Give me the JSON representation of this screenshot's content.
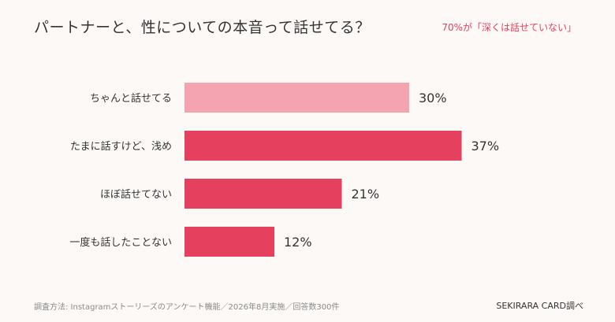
{
  "header": {
    "title": "パートナーと、性についての本音って話せてる？",
    "callout": "70%が「深くは話せていない」"
  },
  "chart_data": {
    "type": "bar",
    "orientation": "horizontal",
    "categories": [
      "ちゃんと話せてる",
      "たまに話すけど、浅め",
      "ほぼ話せてない",
      "一度も話したことない"
    ],
    "values": [
      30,
      37,
      21,
      12
    ],
    "value_labels": [
      "30%",
      "37%",
      "21%",
      "12%"
    ],
    "colors": [
      "#f4a3b0",
      "#e5405e",
      "#e5405e",
      "#e5405e"
    ],
    "title": "パートナーと、性についての本音って話せてる？",
    "xlabel": "",
    "ylabel": "",
    "xlim": [
      0,
      100
    ],
    "grid": false
  },
  "footer": {
    "method": "調査方法: Instagramストーリーズのアンケート機能／2026年8月実施／回答数300件",
    "source": "SEKIRARA CARD調べ"
  }
}
